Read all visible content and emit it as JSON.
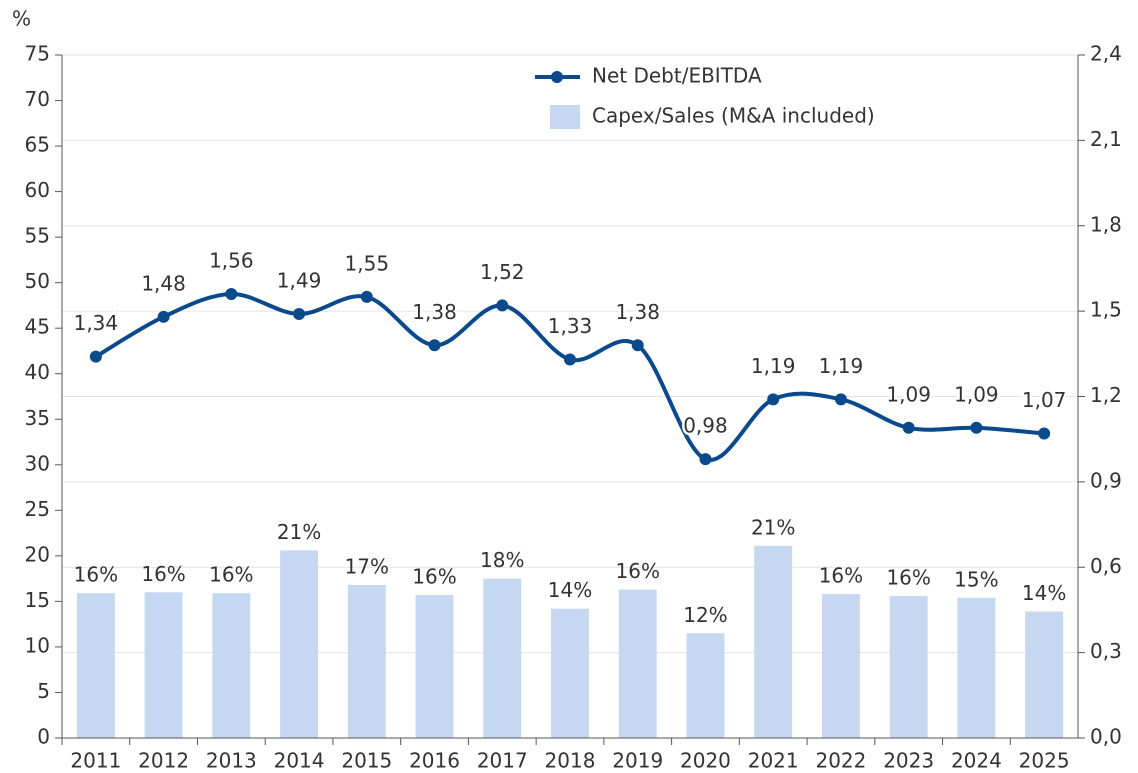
{
  "chart_data": {
    "type": "bar",
    "y_label": "%",
    "categories": [
      "2011",
      "2012",
      "2013",
      "2014",
      "2015",
      "2016",
      "2017",
      "2018",
      "2019",
      "2020",
      "2021",
      "2022",
      "2023",
      "2024",
      "2025"
    ],
    "series": [
      {
        "name": "Net Debt/EBITDA",
        "type": "line",
        "axis": "y2",
        "color": "#0a4a8c",
        "values": [
          1.34,
          1.48,
          1.56,
          1.49,
          1.55,
          1.38,
          1.52,
          1.33,
          1.38,
          0.98,
          1.19,
          1.19,
          1.09,
          1.09,
          1.07
        ],
        "value_labels": [
          "1,34",
          "1,48",
          "1,56",
          "1,49",
          "1,55",
          "1,38",
          "1,52",
          "1,33",
          "1,38",
          "0,98",
          "1,19",
          "1,19",
          "1,09",
          "1,09",
          "1,07"
        ]
      },
      {
        "name": "Capex/Sales (M&A included)",
        "type": "bar",
        "color": "#c6d8f1",
        "values": [
          15.9,
          16.0,
          15.9,
          20.6,
          16.8,
          15.7,
          17.5,
          14.2,
          16.3,
          11.5,
          21.1,
          15.8,
          15.6,
          15.4,
          13.9
        ],
        "value_labels": [
          "16%",
          "16%",
          "16%",
          "21%",
          "17%",
          "16%",
          "18%",
          "14%",
          "16%",
          "12%",
          "21%",
          "16%",
          "16%",
          "15%",
          "14%"
        ]
      }
    ],
    "ylim": [
      0,
      75
    ],
    "yticks": [
      0,
      5,
      10,
      15,
      20,
      25,
      30,
      35,
      40,
      45,
      50,
      55,
      60,
      65,
      70,
      75
    ],
    "y2lim": [
      0,
      2.4
    ],
    "y2ticks": [
      {
        "value": 0,
        "label": "0,0"
      },
      {
        "value": 0.3,
        "label": "0,3"
      },
      {
        "value": 0.6,
        "label": "0,6"
      },
      {
        "value": 0.9,
        "label": "0,9"
      },
      {
        "value": 1.2,
        "label": "1,2"
      },
      {
        "value": 1.5,
        "label": "1,5"
      },
      {
        "value": 1.8,
        "label": "1,8"
      },
      {
        "value": 2.1,
        "label": "2,1"
      },
      {
        "value": 2.4,
        "label": "2,4"
      }
    ],
    "grid": true,
    "legend": "upper center"
  }
}
